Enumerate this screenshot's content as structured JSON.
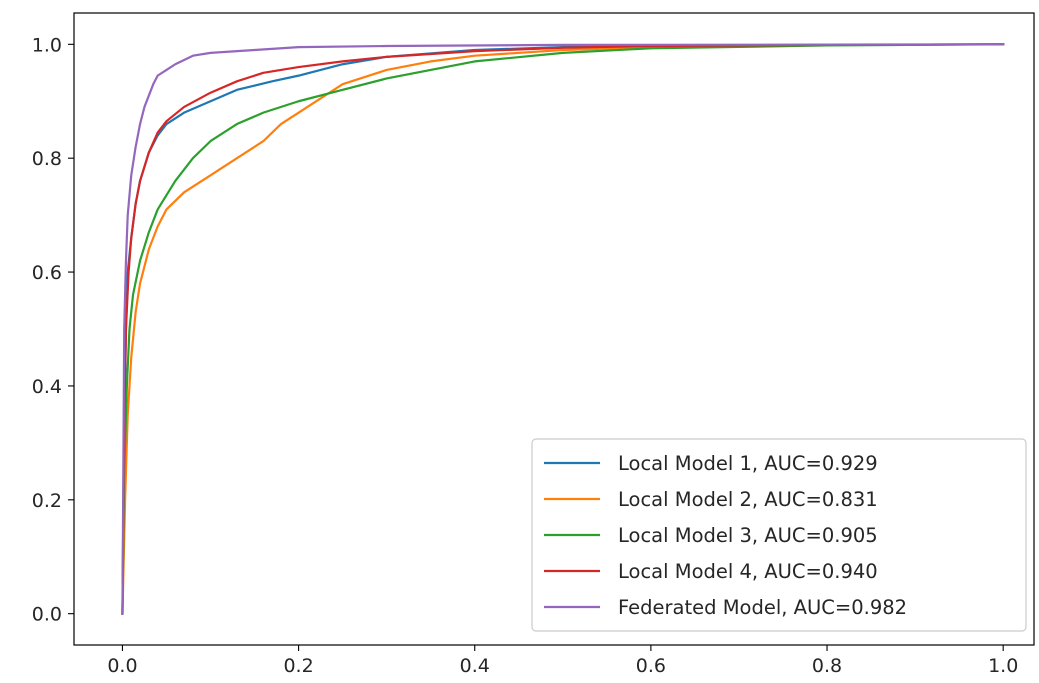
{
  "chart_data": {
    "type": "line",
    "title": "",
    "xlabel": "",
    "ylabel": "",
    "xlim": [
      -0.055,
      1.035
    ],
    "ylim": [
      -0.055,
      1.055
    ],
    "xticks": [
      {
        "value": 0.0,
        "label": "0.0"
      },
      {
        "value": 0.2,
        "label": "0.2"
      },
      {
        "value": 0.4,
        "label": "0.4"
      },
      {
        "value": 0.6,
        "label": "0.6"
      },
      {
        "value": 0.8,
        "label": "0.8"
      },
      {
        "value": 1.0,
        "label": "1.0"
      }
    ],
    "yticks": [
      {
        "value": 0.0,
        "label": "0.0"
      },
      {
        "value": 0.2,
        "label": "0.2"
      },
      {
        "value": 0.4,
        "label": "0.4"
      },
      {
        "value": 0.6,
        "label": "0.6"
      },
      {
        "value": 0.8,
        "label": "0.8"
      },
      {
        "value": 1.0,
        "label": "1.0"
      }
    ],
    "grid": false,
    "legend_position": "lower-right",
    "series": [
      {
        "name": "Local Model 1, AUC=0.929",
        "color": "#1f77b4",
        "points": [
          [
            0,
            0
          ],
          [
            0.002,
            0.3
          ],
          [
            0.004,
            0.5
          ],
          [
            0.006,
            0.6
          ],
          [
            0.01,
            0.66
          ],
          [
            0.015,
            0.72
          ],
          [
            0.02,
            0.76
          ],
          [
            0.03,
            0.81
          ],
          [
            0.04,
            0.84
          ],
          [
            0.05,
            0.86
          ],
          [
            0.07,
            0.88
          ],
          [
            0.1,
            0.9
          ],
          [
            0.13,
            0.92
          ],
          [
            0.17,
            0.935
          ],
          [
            0.2,
            0.945
          ],
          [
            0.25,
            0.965
          ],
          [
            0.3,
            0.978
          ],
          [
            0.4,
            0.99
          ],
          [
            0.5,
            0.995
          ],
          [
            0.6,
            0.998
          ],
          [
            0.8,
            0.999
          ],
          [
            1.0,
            1.0
          ]
        ]
      },
      {
        "name": "Local Model 2, AUC=0.831",
        "color": "#ff7f0e",
        "points": [
          [
            0,
            0
          ],
          [
            0.003,
            0.2
          ],
          [
            0.006,
            0.35
          ],
          [
            0.01,
            0.45
          ],
          [
            0.015,
            0.53
          ],
          [
            0.02,
            0.58
          ],
          [
            0.03,
            0.64
          ],
          [
            0.04,
            0.68
          ],
          [
            0.05,
            0.71
          ],
          [
            0.07,
            0.74
          ],
          [
            0.1,
            0.77
          ],
          [
            0.13,
            0.8
          ],
          [
            0.16,
            0.83
          ],
          [
            0.18,
            0.86
          ],
          [
            0.2,
            0.88
          ],
          [
            0.23,
            0.91
          ],
          [
            0.25,
            0.93
          ],
          [
            0.3,
            0.955
          ],
          [
            0.35,
            0.97
          ],
          [
            0.4,
            0.98
          ],
          [
            0.5,
            0.99
          ],
          [
            0.6,
            0.995
          ],
          [
            0.8,
            0.999
          ],
          [
            1.0,
            1.0
          ]
        ]
      },
      {
        "name": "Local Model 3, AUC=0.905",
        "color": "#2ca02c",
        "points": [
          [
            0,
            0
          ],
          [
            0.002,
            0.25
          ],
          [
            0.005,
            0.4
          ],
          [
            0.008,
            0.5
          ],
          [
            0.012,
            0.56
          ],
          [
            0.02,
            0.62
          ],
          [
            0.03,
            0.67
          ],
          [
            0.04,
            0.71
          ],
          [
            0.06,
            0.76
          ],
          [
            0.08,
            0.8
          ],
          [
            0.1,
            0.83
          ],
          [
            0.13,
            0.86
          ],
          [
            0.16,
            0.88
          ],
          [
            0.2,
            0.9
          ],
          [
            0.25,
            0.92
          ],
          [
            0.3,
            0.94
          ],
          [
            0.35,
            0.955
          ],
          [
            0.4,
            0.97
          ],
          [
            0.5,
            0.985
          ],
          [
            0.6,
            0.993
          ],
          [
            0.8,
            0.998
          ],
          [
            1.0,
            1.0
          ]
        ]
      },
      {
        "name": "Local Model 4, AUC=0.940",
        "color": "#d62728",
        "points": [
          [
            0,
            0
          ],
          [
            0.002,
            0.35
          ],
          [
            0.004,
            0.5
          ],
          [
            0.007,
            0.6
          ],
          [
            0.01,
            0.66
          ],
          [
            0.015,
            0.72
          ],
          [
            0.02,
            0.76
          ],
          [
            0.03,
            0.81
          ],
          [
            0.04,
            0.845
          ],
          [
            0.05,
            0.865
          ],
          [
            0.07,
            0.89
          ],
          [
            0.1,
            0.915
          ],
          [
            0.13,
            0.935
          ],
          [
            0.16,
            0.95
          ],
          [
            0.2,
            0.96
          ],
          [
            0.25,
            0.97
          ],
          [
            0.3,
            0.978
          ],
          [
            0.4,
            0.988
          ],
          [
            0.5,
            0.994
          ],
          [
            0.6,
            0.997
          ],
          [
            0.8,
            0.999
          ],
          [
            1.0,
            1.0
          ]
        ]
      },
      {
        "name": "Federated Model, AUC=0.982",
        "color": "#9467bd",
        "points": [
          [
            0,
            0
          ],
          [
            0.002,
            0.5
          ],
          [
            0.004,
            0.62
          ],
          [
            0.006,
            0.7
          ],
          [
            0.01,
            0.77
          ],
          [
            0.015,
            0.82
          ],
          [
            0.02,
            0.86
          ],
          [
            0.025,
            0.89
          ],
          [
            0.03,
            0.91
          ],
          [
            0.035,
            0.93
          ],
          [
            0.04,
            0.945
          ],
          [
            0.05,
            0.955
          ],
          [
            0.06,
            0.965
          ],
          [
            0.08,
            0.98
          ],
          [
            0.1,
            0.985
          ],
          [
            0.15,
            0.99
          ],
          [
            0.2,
            0.995
          ],
          [
            0.3,
            0.997
          ],
          [
            0.5,
            0.999
          ],
          [
            0.8,
            0.9995
          ],
          [
            1.0,
            1.0
          ]
        ]
      }
    ]
  }
}
